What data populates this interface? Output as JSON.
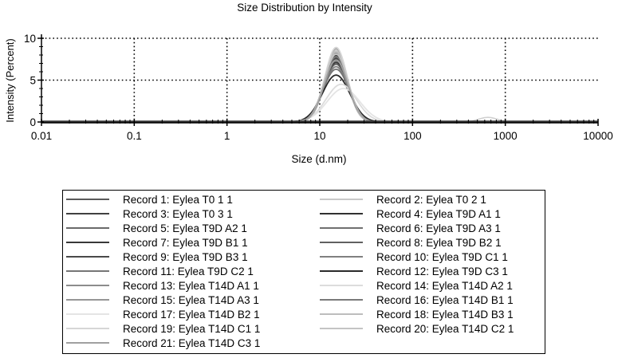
{
  "chart_data": {
    "type": "line",
    "title": "Size Distribution by Intensity",
    "xlabel": "Size (d.nm)",
    "ylabel": "Intensity (Percent)",
    "x_scale": "log",
    "xlim": [
      0.01,
      10000
    ],
    "ylim": [
      0,
      10
    ],
    "x_ticks": [
      "0.01",
      "0.1",
      "1",
      "10",
      "100",
      "1000",
      "10000"
    ],
    "y_ticks": [
      "0",
      "5",
      "10"
    ],
    "grid": true,
    "legend_position": "bottom",
    "series": [
      {
        "name": "Record 1: Eylea T0 1 1",
        "color": "#5a5a5a",
        "peak_x": 15,
        "peak_y": 8.0,
        "width": 0.18
      },
      {
        "name": "Record 2: Eylea T0 2 1",
        "color": "#c8c8c8",
        "peak_x": 15,
        "peak_y": 8.6,
        "width": 0.17
      },
      {
        "name": "Record 3: Eylea T0 3 1",
        "color": "#404040",
        "peak_x": 15,
        "peak_y": 7.9,
        "width": 0.18
      },
      {
        "name": "Record 4: Eylea T9D A1 1",
        "color": "#303030",
        "peak_x": 15,
        "peak_y": 7.5,
        "width": 0.18
      },
      {
        "name": "Record 5: Eylea T9D A2 1",
        "color": "#6a6a6a",
        "peak_x": 15,
        "peak_y": 7.7,
        "width": 0.18
      },
      {
        "name": "Record 6: Eylea T9D A3 1",
        "color": "#707070",
        "peak_x": 15,
        "peak_y": 7.3,
        "width": 0.18
      },
      {
        "name": "Record 7: Eylea T9D B1 1",
        "color": "#383838",
        "peak_x": 15,
        "peak_y": 7.1,
        "width": 0.19
      },
      {
        "name": "Record 8: Eylea T9D B2 1",
        "color": "#606060",
        "peak_x": 15,
        "peak_y": 6.9,
        "width": 0.19
      },
      {
        "name": "Record 9: Eylea T9D B3 1",
        "color": "#4a4a4a",
        "peak_x": 15,
        "peak_y": 7.6,
        "width": 0.18
      },
      {
        "name": "Record 10: Eylea T9D C1 1",
        "color": "#808080",
        "peak_x": 15,
        "peak_y": 6.6,
        "width": 0.19
      },
      {
        "name": "Record 11: Eylea T9D C2 1",
        "color": "#767676",
        "peak_x": 15,
        "peak_y": 6.3,
        "width": 0.2
      },
      {
        "name": "Record 12: Eylea T9D C3 1",
        "color": "#2a2a2a",
        "peak_x": 15,
        "peak_y": 5.6,
        "width": 0.21
      },
      {
        "name": "Record 13: Eylea T14D A1 1",
        "color": "#8c8c8c",
        "peak_x": 15,
        "peak_y": 8.2,
        "width": 0.17
      },
      {
        "name": "Record 14: Eylea T14D A2 1",
        "color": "#dcdcdc",
        "peak_x": 17,
        "peak_y": 4.5,
        "width": 0.23
      },
      {
        "name": "Record 15: Eylea T14D A3 1",
        "color": "#969696",
        "peak_x": 15,
        "peak_y": 8.8,
        "width": 0.17
      },
      {
        "name": "Record 16: Eylea T14D B1 1",
        "color": "#7a7a7a",
        "peak_x": 15,
        "peak_y": 7.8,
        "width": 0.18
      },
      {
        "name": "Record 17: Eylea T14D B2 1",
        "color": "#e4e4e4",
        "peak_x": 18,
        "peak_y": 4.0,
        "width": 0.25
      },
      {
        "name": "Record 18: Eylea T14D B3 1",
        "color": "#bdbdbd",
        "peak_x": 15,
        "peak_y": 8.4,
        "width": 0.17
      },
      {
        "name": "Record 19: Eylea T14D C1 1",
        "color": "#d6d6d6",
        "peak_x": 15,
        "peak_y": 8.9,
        "width": 0.17
      },
      {
        "name": "Record 20: Eylea T14D C2 1",
        "color": "#c4c4c4",
        "peak_x": 15,
        "peak_y": 8.1,
        "width": 0.18
      },
      {
        "name": "Record 21: Eylea T14D C3 1",
        "color": "#a0a0a0",
        "peak_x": 15,
        "peak_y": 7.4,
        "width": 0.18
      }
    ]
  }
}
